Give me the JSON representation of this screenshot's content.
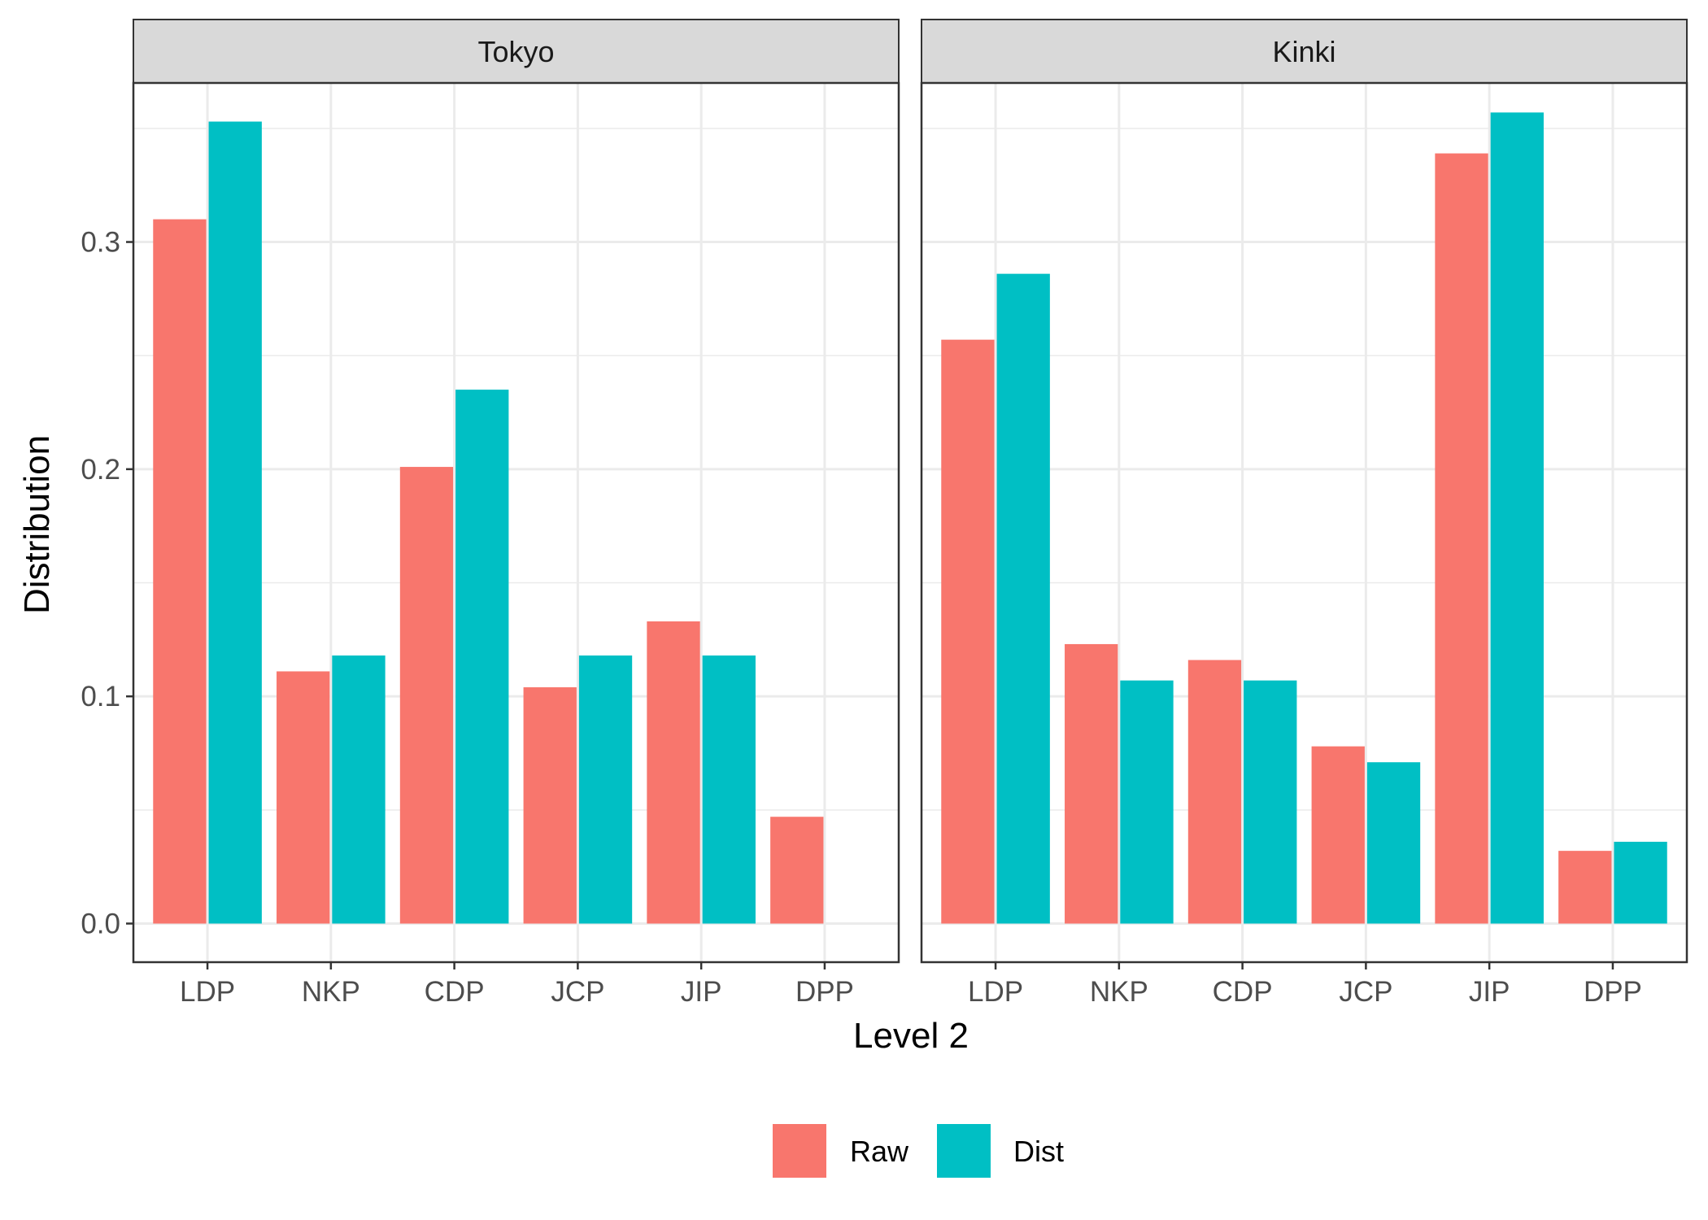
{
  "chart_data": {
    "type": "bar",
    "xlabel": "Level 2",
    "ylabel": "Distribution",
    "ylim": [
      -0.017,
      0.37
    ],
    "yticks": [
      0.0,
      0.1,
      0.2,
      0.3
    ],
    "ytick_labels": [
      "0.0",
      "0.1",
      "0.2",
      "0.3"
    ],
    "grid": true,
    "legend_position": "bottom",
    "categories": [
      "LDP",
      "NKP",
      "CDP",
      "JCP",
      "JIP",
      "DPP"
    ],
    "series_styles": [
      {
        "name": "Raw",
        "color": "#F8766D"
      },
      {
        "name": "Dist",
        "color": "#00BFC4"
      }
    ],
    "panels": [
      {
        "title": "Tokyo",
        "series": [
          {
            "name": "Raw",
            "values": [
              0.31,
              0.111,
              0.201,
              0.104,
              0.133,
              0.047
            ]
          },
          {
            "name": "Dist",
            "values": [
              0.353,
              0.118,
              0.235,
              0.118,
              0.118,
              0.0
            ]
          }
        ]
      },
      {
        "title": "Kinki",
        "series": [
          {
            "name": "Raw",
            "values": [
              0.257,
              0.123,
              0.116,
              0.078,
              0.339,
              0.032
            ]
          },
          {
            "name": "Dist",
            "values": [
              0.286,
              0.107,
              0.107,
              0.071,
              0.357,
              0.036
            ]
          }
        ]
      }
    ]
  }
}
